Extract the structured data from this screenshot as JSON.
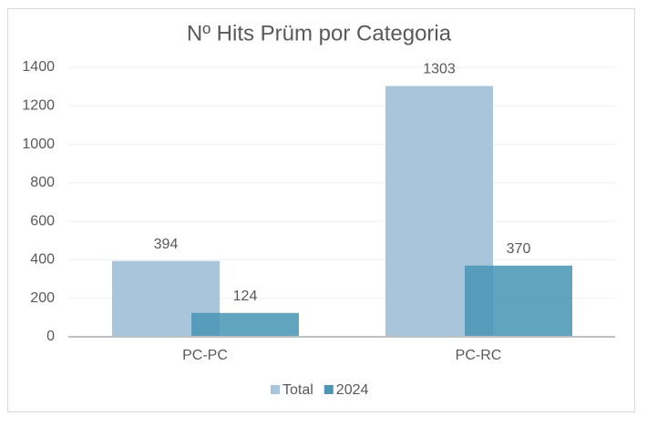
{
  "chart_data": {
    "type": "bar",
    "title": "Nº Hits Prüm por Categoria",
    "categories": [
      "PC-PC",
      "PC-RC"
    ],
    "series": [
      {
        "name": "Total",
        "color": "#a9c5dc",
        "values": [
          394,
          1303
        ]
      },
      {
        "name": "2024",
        "color": "#4b97b6",
        "values": [
          124,
          370
        ]
      }
    ],
    "ylim": [
      0,
      1400
    ],
    "yticks": [
      0,
      200,
      400,
      600,
      800,
      1000,
      1200,
      1400
    ],
    "grid": true,
    "legend": "bottom"
  }
}
